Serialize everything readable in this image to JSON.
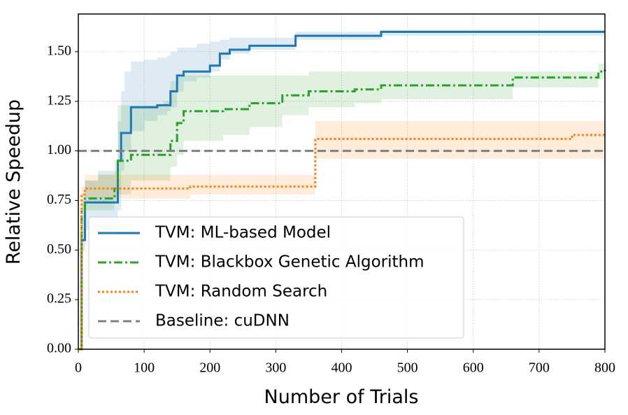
{
  "chart_data": {
    "type": "line",
    "step": "post",
    "xlabel": "Number of Trials",
    "ylabel": "Relative Speedup",
    "xlim": [
      0,
      800
    ],
    "ylim": [
      0,
      1.69
    ],
    "xticks": [
      0,
      100,
      200,
      300,
      400,
      500,
      600,
      700,
      800
    ],
    "yticks": [
      {
        "value": 0,
        "label": "0.00"
      },
      {
        "value": 0.25,
        "label": "0.25"
      },
      {
        "value": 0.5,
        "label": "0.50"
      },
      {
        "value": 0.75,
        "label": "0.75"
      },
      {
        "value": 1,
        "label": "1.00"
      },
      {
        "value": 1.25,
        "label": "1.25"
      },
      {
        "value": 1.5,
        "label": "1.50"
      }
    ],
    "grid": true,
    "legend": "lower left",
    "series": [
      {
        "name": "TVM: ML-based Model",
        "color": "#1f77b4",
        "linestyle": "solid",
        "x": [
          0,
          5,
          10,
          30,
          60,
          65,
          70,
          80,
          100,
          120,
          135,
          140,
          150,
          160,
          180,
          200,
          215,
          230,
          260,
          330,
          460,
          800
        ],
        "values": [
          0,
          0.55,
          0.74,
          0.74,
          0.95,
          1.09,
          1.09,
          1.22,
          1.22,
          1.23,
          1.23,
          1.3,
          1.38,
          1.4,
          1.4,
          1.43,
          1.49,
          1.51,
          1.53,
          1.58,
          1.6,
          1.6
        ],
        "band_lower": [
          0,
          0.5,
          0.6,
          0.6,
          0.7,
          0.9,
          1.0,
          1.1,
          1.15,
          1.18,
          1.2,
          1.22,
          1.3,
          1.35,
          1.37,
          1.4,
          1.46,
          1.49,
          1.51,
          1.56,
          1.58,
          1.58
        ],
        "band_upper": [
          0,
          0.6,
          0.85,
          0.9,
          1.15,
          1.3,
          1.4,
          1.45,
          1.46,
          1.47,
          1.48,
          1.5,
          1.52,
          1.52,
          1.54,
          1.55,
          1.56,
          1.57,
          1.57,
          1.6,
          1.61,
          1.61
        ]
      },
      {
        "name": "TVM: Blackbox Genetic Algorithm",
        "color": "#2ca02c",
        "linestyle": "dashdot",
        "x": [
          0,
          5,
          10,
          30,
          55,
          60,
          80,
          130,
          140,
          150,
          160,
          220,
          260,
          310,
          350,
          420,
          460,
          660,
          790,
          800
        ],
        "values": [
          0,
          0.7,
          0.76,
          0.76,
          0.81,
          0.95,
          0.98,
          0.98,
          1.05,
          1.14,
          1.2,
          1.21,
          1.24,
          1.28,
          1.3,
          1.31,
          1.33,
          1.37,
          1.4,
          1.41
        ],
        "band_lower": [
          0,
          0.6,
          0.7,
          0.7,
          0.75,
          0.78,
          0.85,
          0.85,
          0.92,
          0.98,
          1.05,
          1.08,
          1.12,
          1.18,
          1.22,
          1.24,
          1.26,
          1.32,
          1.36,
          1.37
        ],
        "band_upper": [
          0,
          0.75,
          0.85,
          0.88,
          0.95,
          1.23,
          1.23,
          1.25,
          1.35,
          1.38,
          1.38,
          1.38,
          1.38,
          1.38,
          1.4,
          1.4,
          1.4,
          1.4,
          1.44,
          1.45
        ]
      },
      {
        "name": "TVM: Random Search",
        "color": "#ff7f0e",
        "linestyle": "dotted",
        "x": [
          0,
          5,
          10,
          170,
          360,
          750,
          800
        ],
        "values": [
          0,
          0.78,
          0.81,
          0.82,
          1.06,
          1.08,
          1.09
        ],
        "band_lower": [
          0,
          0.7,
          0.76,
          0.78,
          0.96,
          0.96,
          1.0
        ],
        "band_upper": [
          0,
          0.82,
          0.88,
          0.88,
          1.15,
          1.15,
          1.15
        ]
      },
      {
        "name": "Baseline: cuDNN",
        "color": "#7f7f7f",
        "linestyle": "dashed",
        "x": [
          0,
          800
        ],
        "values": [
          1,
          1
        ]
      }
    ]
  }
}
